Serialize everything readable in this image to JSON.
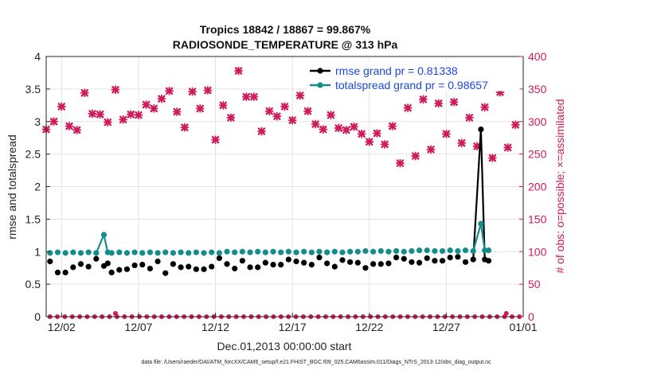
{
  "chart_data": {
    "type": "line",
    "title": "Tropics 18842 / 18867 = 99.867%",
    "subtitle": "RADIOSONDE_TEMPERATURE @ 313 hPa",
    "xlabel": "Dec.01,2013 00:00:00 start",
    "ylabel": "rmse and totalspread",
    "ylabel_right": "# of obs: o=possible; ×=assimilated",
    "x_ticks": [
      "12/02",
      "12/07",
      "12/12",
      "12/17",
      "12/22",
      "12/27",
      "01/01"
    ],
    "x_tick_days": [
      1,
      6,
      11,
      16,
      21,
      26,
      31
    ],
    "xlim_days": [
      0,
      31
    ],
    "y_ticks": [
      "0",
      "0.5",
      "1",
      "1.5",
      "2",
      "2.5",
      "3",
      "3.5",
      "4"
    ],
    "ylim": [
      0,
      4
    ],
    "y_right_ticks": [
      "0",
      "50",
      "100",
      "150",
      "200",
      "250",
      "300",
      "350",
      "400"
    ],
    "ylim_right": [
      0,
      400
    ],
    "legend_position": "top-right",
    "grid": true,
    "x_days": [
      0,
      0.25,
      0.5,
      0.75,
      1,
      1.25,
      1.5,
      1.75,
      2,
      2.25,
      2.5,
      2.75,
      3,
      3.25,
      3.5,
      3.75,
      4,
      4.25,
      4.5,
      4.75,
      5,
      5.25,
      5.5,
      5.75,
      6,
      6.25,
      6.5,
      6.75,
      7,
      7.25,
      7.5,
      7.75,
      8,
      8.25,
      8.5,
      8.75,
      9,
      9.25,
      9.5,
      9.75,
      10,
      10.25,
      10.5,
      10.75,
      11,
      11.25,
      11.5,
      11.75,
      12,
      12.25,
      12.5,
      12.75,
      13,
      13.25,
      13.5,
      13.75,
      14,
      14.25,
      14.5,
      14.75,
      15,
      15.25,
      15.5,
      15.75,
      16,
      16.25,
      16.5,
      16.75,
      17,
      17.25,
      17.5,
      17.75,
      18,
      18.25,
      18.5,
      18.75,
      19,
      19.25,
      19.5,
      19.75,
      20,
      20.25,
      20.5,
      20.75,
      21,
      21.25,
      21.5,
      21.75,
      22,
      22.25,
      22.5,
      22.75,
      23,
      23.25,
      23.5,
      23.75,
      24,
      24.25,
      24.5,
      24.75,
      25,
      25.25,
      25.5,
      25.75,
      26,
      26.25,
      26.5,
      26.75,
      27,
      27.25,
      27.5,
      27.75,
      28,
      28.25,
      28.5,
      28.75,
      29,
      29.25,
      29.5,
      29.75,
      30,
      30.25,
      30.5,
      30.75
    ],
    "series": [
      {
        "name": "rmse grand pr = 0.81338",
        "color": "#000000",
        "values": [
          null,
          0.85,
          null,
          0.68,
          null,
          0.68,
          null,
          0.76,
          null,
          0.81,
          null,
          0.77,
          null,
          0.89,
          null,
          0.78,
          0.82,
          0.68,
          null,
          0.72,
          null,
          0.73,
          null,
          0.79,
          null,
          0.8,
          null,
          0.74,
          null,
          0.85,
          null,
          0.67,
          null,
          0.81,
          null,
          0.76,
          null,
          0.77,
          null,
          0.73,
          null,
          0.73,
          null,
          0.77,
          null,
          0.9,
          null,
          0.81,
          null,
          0.74,
          null,
          0.86,
          null,
          0.76,
          null,
          0.76,
          null,
          0.83,
          null,
          0.8,
          null,
          0.8,
          null,
          0.88,
          null,
          0.85,
          null,
          0.83,
          null,
          0.8,
          null,
          0.91,
          null,
          0.82,
          null,
          0.77,
          null,
          0.87,
          null,
          0.84,
          null,
          0.83,
          null,
          0.75,
          null,
          0.81,
          null,
          0.81,
          null,
          0.82,
          null,
          0.91,
          null,
          0.89,
          null,
          0.84,
          null,
          0.83,
          null,
          0.9,
          null,
          0.86,
          null,
          0.86,
          null,
          0.91,
          null,
          0.92,
          null,
          0.84,
          null,
          0.88,
          null,
          2.88,
          0.88,
          0.86
        ]
      },
      {
        "name": "totalspread grand pr = 0.98657",
        "color": "#138c8c",
        "values": [
          null,
          0.98,
          null,
          0.99,
          null,
          0.98,
          null,
          0.99,
          null,
          0.98,
          null,
          0.99,
          null,
          0.98,
          null,
          1.26,
          0.99,
          0.98,
          null,
          0.99,
          null,
          0.98,
          null,
          0.99,
          null,
          0.98,
          null,
          0.99,
          null,
          0.98,
          null,
          0.99,
          null,
          0.98,
          null,
          0.99,
          null,
          0.98,
          null,
          0.99,
          null,
          0.98,
          null,
          0.99,
          null,
          0.98,
          null,
          1.0,
          null,
          0.99,
          null,
          1.0,
          null,
          0.99,
          null,
          1.0,
          null,
          0.99,
          null,
          1.0,
          null,
          0.99,
          null,
          1.0,
          null,
          0.99,
          null,
          1.0,
          null,
          0.99,
          null,
          1.0,
          null,
          0.99,
          null,
          1.0,
          null,
          0.99,
          null,
          1.0,
          null,
          1.0,
          null,
          1.01,
          null,
          1.0,
          null,
          1.01,
          null,
          1.0,
          null,
          1.01,
          null,
          1.0,
          null,
          1.01,
          null,
          1.02,
          null,
          1.02,
          null,
          1.01,
          null,
          1.01,
          null,
          1.02,
          null,
          1.01,
          null,
          1.02,
          null,
          1.01,
          null,
          1.43,
          1.02,
          1.02
        ]
      }
    ],
    "obs_assimilated": {
      "color": "#d01a5a",
      "x_days": [
        0.0,
        0.5,
        1.0,
        1.5,
        2.0,
        2.5,
        3.0,
        3.5,
        4.0,
        4.5,
        5.0,
        5.5,
        6.0,
        6.5,
        7.0,
        7.5,
        8.0,
        8.5,
        9.0,
        9.5,
        10.0,
        10.5,
        11.0,
        11.5,
        12.0,
        12.5,
        13.0,
        13.5,
        14.0,
        14.5,
        15.0,
        15.5,
        16.0,
        16.5,
        17.0,
        17.5,
        18.0,
        18.5,
        19.0,
        19.5,
        20.0,
        20.5,
        21.0,
        21.5,
        22.0,
        22.5,
        23.0,
        23.5,
        24.0,
        24.5,
        25.0,
        25.5,
        26.0,
        26.5,
        27.0,
        27.5,
        28.0,
        28.5,
        29.0,
        29.5,
        30.0,
        30.5
      ],
      "values": [
        288,
        300,
        323,
        293,
        287,
        344,
        312,
        311,
        299,
        349,
        303,
        311,
        310,
        326,
        320,
        335,
        347,
        315,
        291,
        346,
        320,
        348,
        272,
        325,
        306,
        378,
        338,
        338,
        285,
        316,
        308,
        323,
        302,
        340,
        316,
        296,
        288,
        310,
        290,
        287,
        292,
        281,
        269,
        282,
        265,
        293,
        236,
        321,
        247,
        334,
        257,
        328,
        281,
        330,
        267,
        306,
        262,
        322,
        244,
        345,
        260,
        295
      ]
    },
    "obs_possible_marker_values": [
      0,
      0,
      0,
      0,
      0,
      0,
      0,
      0,
      0,
      0,
      0,
      0,
      0,
      0,
      0,
      0,
      0,
      0,
      0,
      0,
      0,
      0,
      0,
      0,
      0,
      0,
      0,
      0,
      0,
      0,
      0,
      0,
      0,
      0,
      0,
      0,
      0,
      0,
      0,
      0,
      0,
      0,
      0,
      0,
      0,
      0,
      0,
      0,
      0,
      0,
      0,
      0,
      0,
      0,
      0,
      0,
      0,
      0,
      0,
      0,
      0,
      0,
      0,
      0
    ]
  },
  "footer": {
    "text": "data file: /Users/raeder/DAI/ATM_forcXX/CAM6_setup/f.e21.FHIST_BGC.f09_025.CAM6assim.011/Diags_NTrS_2013-12/obs_diag_output.nc"
  }
}
